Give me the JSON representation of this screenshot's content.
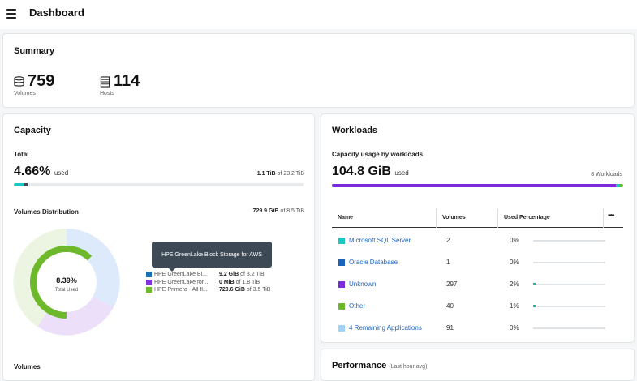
{
  "header": {
    "title": "Dashboard",
    "menu_icon": "hamburger-menu-icon"
  },
  "summary": {
    "title": "Summary",
    "volumes": {
      "value": "759",
      "label": "Volumes",
      "icon": "database-icon"
    },
    "hosts": {
      "value": "114",
      "label": "Hosts",
      "icon": "server-icon"
    }
  },
  "capacity": {
    "title": "Capacity",
    "total_label": "Total",
    "total_pct": "4.66%",
    "used_word": "used",
    "total_used": "1.1 TiB",
    "total_of": "of 23.2 TiB",
    "total_used_fraction": 0.0466,
    "distribution_label": "Volumes Distribution",
    "distribution_used": "729.9 GiB",
    "distribution_of": "of 8.5 TiB",
    "donut_pct": "8.39%",
    "donut_caption": "Total Used",
    "tooltip": "HPE GreenLake Block Storage for AWS",
    "legend": [
      {
        "name": "HPE GreenLake Bl...",
        "used": "9.2 GiB",
        "of": "of 3.2 TiB",
        "color": "#1a6fb5"
      },
      {
        "name": "HPE GreenLake for...",
        "used": "0 MiB",
        "of": "of 1.8 TiB",
        "color": "#7f35d9"
      },
      {
        "name": "HPE Primera - All fl...",
        "used": "720.6 GiB",
        "of": "of 3.5 TiB",
        "color": "#6db92b"
      }
    ],
    "volumes_label": "Volumes"
  },
  "workloads": {
    "title": "Workloads",
    "subtitle": "Capacity usage by workloads",
    "used_value": "104.8 GiB",
    "used_word": "used",
    "count_text": "8 Workloads",
    "table_headers": {
      "name": "Name",
      "volumes": "Volumes",
      "used": "Used Percentage"
    },
    "more_label": "•••",
    "rows": [
      {
        "name": "Microsoft SQL Server",
        "volumes": "2",
        "pct": "0%",
        "fraction": 0.0,
        "color": "#1cc7c2"
      },
      {
        "name": "Oracle Database",
        "volumes": "1",
        "pct": "0%",
        "fraction": 0.0,
        "color": "#1a63b8"
      },
      {
        "name": "Unknown",
        "volumes": "297",
        "pct": "2%",
        "fraction": 0.02,
        "color": "#7a2bd6"
      },
      {
        "name": "Other",
        "volumes": "40",
        "pct": "1%",
        "fraction": 0.01,
        "color": "#6db92b"
      },
      {
        "name": "4 Remaining Applications",
        "volumes": "91",
        "pct": "0%",
        "fraction": 0.0,
        "color": "#9fd3f7"
      }
    ]
  },
  "performance": {
    "title": "Performance",
    "subtitle": "(Last hour avg)"
  }
}
